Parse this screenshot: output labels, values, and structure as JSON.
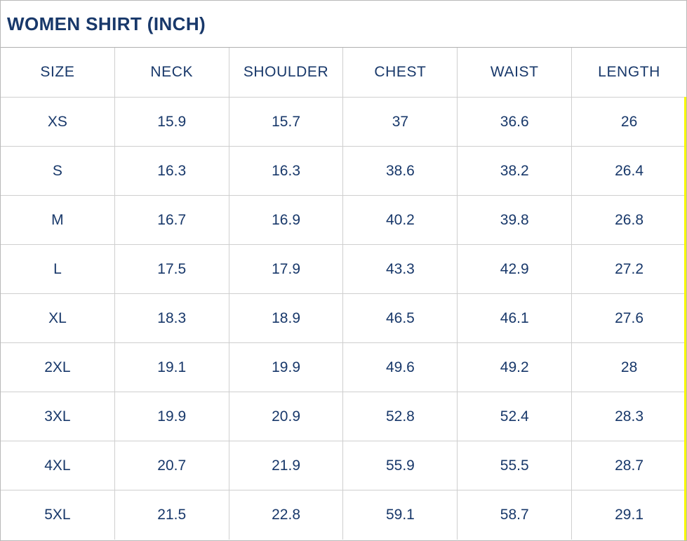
{
  "title": "WOMEN SHIRT (INCH)",
  "colors": {
    "text": "#18386a",
    "grid_line": "#cfcfcf",
    "outer_border": "#b9b9b9",
    "title_divider": "#b0b0b0",
    "highlight_strip": "#f7f700",
    "background": "#ffffff"
  },
  "chart_data": {
    "type": "table",
    "title": "WOMEN SHIRT (INCH)",
    "columns": [
      "SIZE",
      "NECK",
      "SHOULDER",
      "CHEST",
      "WAIST",
      "LENGTH"
    ],
    "rows": [
      [
        "XS",
        "15.9",
        "15.7",
        "37",
        "36.6",
        "26"
      ],
      [
        "S",
        "16.3",
        "16.3",
        "38.6",
        "38.2",
        "26.4"
      ],
      [
        "M",
        "16.7",
        "16.9",
        "40.2",
        "39.8",
        "26.8"
      ],
      [
        "L",
        "17.5",
        "17.9",
        "43.3",
        "42.9",
        "27.2"
      ],
      [
        "XL",
        "18.3",
        "18.9",
        "46.5",
        "46.1",
        "27.6"
      ],
      [
        "2XL",
        "19.1",
        "19.9",
        "49.6",
        "49.2",
        "28"
      ],
      [
        "3XL",
        "19.9",
        "20.9",
        "52.8",
        "52.4",
        "28.3"
      ],
      [
        "4XL",
        "20.7",
        "21.9",
        "55.9",
        "55.5",
        "28.7"
      ],
      [
        "5XL",
        "21.5",
        "22.8",
        "59.1",
        "58.7",
        "29.1"
      ]
    ]
  }
}
